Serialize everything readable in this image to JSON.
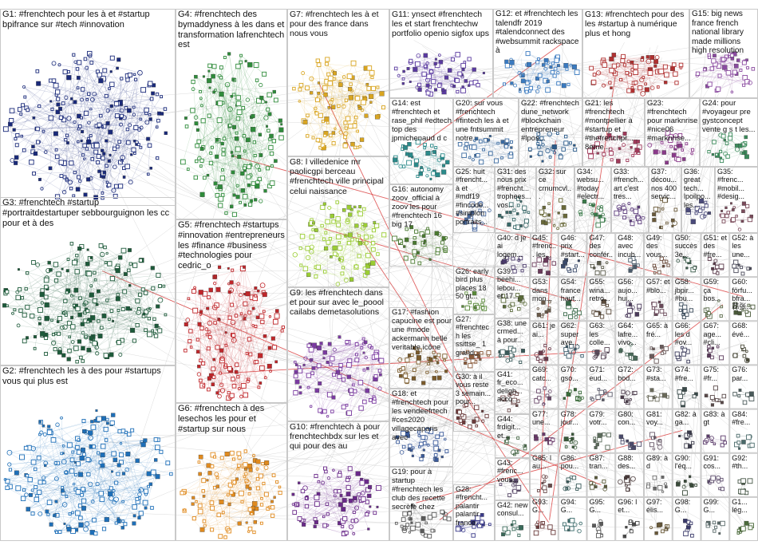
{
  "colors": {
    "edge": "#9a9a9a",
    "edge_red": "#d42020",
    "border": "#c9c9c9",
    "background": "#ffffff"
  },
  "groups": [
    {
      "id": "G1",
      "label": "G1: #frenchtech pour les à et #startup bpifrance sur #tech #innovation",
      "color": "#1a2a7a"
    },
    {
      "id": "G2",
      "label": "G2: #frenchtech les à des pour #startups vous qui plus est",
      "color": "#1e6fb8"
    },
    {
      "id": "G3",
      "label": "G3: #frenchtech #startup #portraitdestartuper sebbourguignon les cc pour et à des",
      "color": "#1d5a3a"
    },
    {
      "id": "G4",
      "label": "G4: #frenchtech des bymaddyness à les dans et transformation lafrenchtech est",
      "color": "#2e8b3a"
    },
    {
      "id": "G5",
      "label": "G5: #frenchtech #startups #innovation #entrepreneurs les #finance #business #technologies pour cedric_o",
      "color": "#c0262a"
    },
    {
      "id": "G6",
      "label": "G6: #frenchtech à des lesechos les pour et #startup sur nous",
      "color": "#e08a1e"
    },
    {
      "id": "G7",
      "label": "G7: #frenchtech les à et pour des france dans nous vous",
      "color": "#d9a520"
    },
    {
      "id": "G8",
      "label": "G8: l villedenice mr paolicgpi berceau #frenchtech ville principal celui naissance",
      "color": "#9acd32"
    },
    {
      "id": "G9",
      "label": "G9: les #frenchtech dans et pour sur avec le_poool cailabs demetasolutions",
      "color": "#7a3aa0"
    },
    {
      "id": "G10",
      "label": "G10: #frenchtech à pour frenchtechbdx sur les et qui pour des au",
      "color": "#6a2a8a"
    },
    {
      "id": "G11",
      "label": "G11: ynsect #frenchtech les et start frenchtechw portfolio openio sigfox ups",
      "color": "#5a3aa0"
    },
    {
      "id": "G12",
      "label": "G12: et #frenchtech les talendfr 2019 #talendconnect des #websummit rackspace à",
      "color": "#3a7ac0"
    },
    {
      "id": "G13",
      "label": "G13: #frenchtech pour des les #startup à numérique plus et hong",
      "color": "#b03030"
    },
    {
      "id": "G14",
      "label": "G14: est #frenchtech et rase_phil #edtech top des jpmichenaud d c",
      "color": "#2a8a8a"
    },
    {
      "id": "G15",
      "label": "G15: big news france french national library made millions high resolution",
      "color": "#8a4aa0"
    },
    {
      "id": "G16",
      "label": "G16: autonomy zoov_official à zoov les pour #frenchtech 16 big 17",
      "color": "#4a7a30"
    },
    {
      "id": "G17",
      "label": "G17: #fashion capucine est pour une #mode ackermann belle veritable icône",
      "color": "#7a5a2a"
    },
    {
      "id": "G18",
      "label": "G18: et #frenchtech pour les vendeefrtech #ces2020 villagecaparis avec",
      "color": "#3a5a9a"
    },
    {
      "id": "G19",
      "label": "G19: pour à startup #frenchtech les club des recette secrète chez",
      "color": "#5a5a5a"
    },
    {
      "id": "G20",
      "label": "G20: sur vous #frenchtech #fintech les à et une fntsummit notre",
      "color": "#3a6aa0"
    },
    {
      "id": "G21",
      "label": "G21: les #frenchtech #montpellier à #startup et #thefrenchpr... 8ème...",
      "color": "#a03a5a"
    },
    {
      "id": "G22",
      "label": "G22: #frenchtech dune_network #blockchain entrepreneur #lpos...",
      "color": "#2a5a8a"
    },
    {
      "id": "G23",
      "label": "G23: #frenchtech pour marknrise #nice06 #marknrise...",
      "color": "#8a3a8a"
    },
    {
      "id": "G24",
      "label": "G24: pour #voyageur pre gystconcept vente g s t les...",
      "color": "#3a8a5a"
    },
    {
      "id": "G25",
      "label": "G25: huit #frencht... à et #mdf19 #fincode... #simplon portraits...",
      "color": "#4a6aa0"
    },
    {
      "id": "G26",
      "label": "G26: early bird plus places 18 50 gt...",
      "color": "#5a8a3a"
    },
    {
      "id": "G27",
      "label": "G27: #frenchtech les ssittse_ 1 grand...",
      "color": "#8a5a3a"
    },
    {
      "id": "G28",
      "label": "G28: #frencht... palantir palantir france...",
      "color": "#3a3a8a"
    },
    {
      "id": "G30",
      "label": "G30: à il vous reste 3 semain... pour...",
      "color": "#6a3a3a"
    },
    {
      "id": "G31",
      "label": "G31: des nous prix #frencht... trophees... vos...",
      "color": "#3a6a6a"
    },
    {
      "id": "G32",
      "label": "G32: sur ce crnumcvl...",
      "color": "#6a6a3a"
    },
    {
      "id": "G33",
      "label": "G33: #french... art c'est tres...",
      "color": "#5a3a7a"
    },
    {
      "id": "G34",
      "label": "G34: websu... #today #electr...",
      "color": "#3a7a4a"
    },
    {
      "id": "G35",
      "label": "G35: #frenc... #mobil... #desig...",
      "color": "#7a4a5a"
    },
    {
      "id": "G36",
      "label": "G36: great tech... lpoilpo... les...",
      "color": "#4a4a7a"
    },
    {
      "id": "G37",
      "label": "G37: décou... nos 400 servic...",
      "color": "#6a5a3a"
    },
    {
      "id": "G38",
      "label": "G38: une crmed... à pour...",
      "color": "#3a5a5a"
    },
    {
      "id": "G39",
      "label": "G39: beehi... lebou... et 17...",
      "color": "#5a6a3a"
    },
    {
      "id": "G40",
      "label": "G40: d je ai logem...",
      "color": "#4a3a6a"
    },
    {
      "id": "G41",
      "label": "G41: fr_eco... deligh... acco...",
      "color": "#6a4a4a"
    },
    {
      "id": "G42",
      "label": "G42: new consul...",
      "color": "#3a6a5a"
    },
    {
      "id": "G43",
      "label": "G43: #frenc... vous...",
      "color": "#5a4a6a"
    },
    {
      "id": "G44",
      "label": "G44: frdigit... et...",
      "color": "#4a6a4a"
    },
    {
      "id": "G45",
      "label": "G45: #frenc... les...",
      "color": "#6a3a5a"
    },
    {
      "id": "G46",
      "label": "G46: prix #start...",
      "color": "#3a4a6a"
    },
    {
      "id": "G47",
      "label": "G47: des confér...",
      "color": "#5a5a4a"
    },
    {
      "id": "G48",
      "label": "G48: avec incub...",
      "color": "#4a5a6a"
    },
    {
      "id": "G49",
      "label": "G49: des vous...",
      "color": "#6a4a3a"
    },
    {
      "id": "G50",
      "label": "G50: succès 3e...",
      "color": "#3a5a4a"
    },
    {
      "id": "G51",
      "label": "G51: et des #fre...",
      "color": "#5a3a4a"
    },
    {
      "id": "G52",
      "label": "G52: à les une...",
      "color": "#4a4a5a"
    },
    {
      "id": "G53",
      "label": "G53: dans mon...",
      "color": "#6a5a4a"
    },
    {
      "id": "G54",
      "label": "G54: france haut...",
      "color": "#3a6a4a"
    },
    {
      "id": "G55",
      "label": "G55: wina... retro...",
      "color": "#5a4a3a"
    },
    {
      "id": "G56",
      "label": "G56: aujo... hui...",
      "color": "#4a3a5a"
    },
    {
      "id": "G57",
      "label": "G57: et #blo...",
      "color": "#6a4a5a"
    },
    {
      "id": "G58",
      "label": "G58: jbpir... #bu...",
      "color": "#3a4a5a"
    },
    {
      "id": "G59",
      "label": "G59: ça bos...",
      "color": "#5a6a4a"
    },
    {
      "id": "G60",
      "label": "G60: förfu... bfra... 蒜张...",
      "color": "#4a5a3a"
    },
    {
      "id": "G61",
      "label": "G61: je ai...",
      "color": "#6a3a4a"
    },
    {
      "id": "G62",
      "label": "G62: super ave...",
      "color": "#3a5a6a"
    },
    {
      "id": "G63",
      "label": "G63: les colle...",
      "color": "#5a4a5a"
    },
    {
      "id": "G64",
      "label": "G64: lafre... vivo...",
      "color": "#4a6a5a"
    },
    {
      "id": "G65",
      "label": "G65: à fré...",
      "color": "#6a5a5a"
    },
    {
      "id": "G66",
      "label": "G66: les d #ov...",
      "color": "#3a3a5a"
    },
    {
      "id": "G67",
      "label": "G67: age... #cli...",
      "color": "#5a3a5a"
    },
    {
      "id": "G68",
      "label": "G68: évé...",
      "color": "#4a4a3a"
    },
    {
      "id": "G69",
      "label": "G69: catc...",
      "color": "#6a4a6a"
    },
    {
      "id": "G70",
      "label": "G70: gso...",
      "color": "#3a6a3a"
    },
    {
      "id": "G71",
      "label": "G71: eud...",
      "color": "#5a5a6a"
    },
    {
      "id": "G72",
      "label": "G72: bod...",
      "color": "#4a3a4a"
    },
    {
      "id": "G73",
      "label": "G73: #sta...",
      "color": "#6a6a5a"
    },
    {
      "id": "G74",
      "label": "G74: #fre...",
      "color": "#3a4a4a"
    },
    {
      "id": "G75",
      "label": "G75: #fr...",
      "color": "#5a4a4a"
    },
    {
      "id": "G76",
      "label": "G76: par...",
      "color": "#4a5a5a"
    },
    {
      "id": "G77",
      "label": "G77: une...",
      "color": "#6a3a6a"
    },
    {
      "id": "G78",
      "label": "G78: jour...",
      "color": "#3a5a3a"
    },
    {
      "id": "G79",
      "label": "G79: votr...",
      "color": "#5a6a5a"
    },
    {
      "id": "G80",
      "label": "G80: con...",
      "color": "#4a4a6a"
    },
    {
      "id": "G81",
      "label": "G81: voy...",
      "color": "#6a5a6a"
    },
    {
      "id": "G82",
      "label": "G82: à ga...",
      "color": "#3a3a4a"
    },
    {
      "id": "G83",
      "label": "G83: à gt",
      "color": "#5a3a6a"
    },
    {
      "id": "G84",
      "label": "G84: #fre...",
      "color": "#4a6a6a"
    },
    {
      "id": "G85",
      "label": "G85: l au...",
      "color": "#6a4a4a"
    },
    {
      "id": "G86",
      "label": "G86: pou...",
      "color": "#3a5a5a"
    },
    {
      "id": "G87",
      "label": "G87: tran...",
      "color": "#5a5a3a"
    },
    {
      "id": "G88",
      "label": "G88: des...",
      "color": "#4a3a3a"
    },
    {
      "id": "G89",
      "label": "G89: à d",
      "color": "#6a6a6a"
    },
    {
      "id": "G90",
      "label": "G90: l'éq...",
      "color": "#3a4a3a"
    },
    {
      "id": "G91",
      "label": "G91: cos...",
      "color": "#5a4a6a"
    },
    {
      "id": "G92",
      "label": "G92: #th...",
      "color": "#4a5a4a"
    },
    {
      "id": "G93",
      "label": "G93: G...",
      "color": "#6a3a3a"
    },
    {
      "id": "G94",
      "label": "G94: G...",
      "color": "#3a6a6a"
    },
    {
      "id": "G95",
      "label": "G95: G...",
      "color": "#5a5a5a"
    },
    {
      "id": "G96",
      "label": "G96: l et...",
      "color": "#4a4a4a"
    },
    {
      "id": "G97",
      "label": "G97: élis...",
      "color": "#6a5a3a"
    },
    {
      "id": "G98",
      "label": "G98: G...",
      "color": "#3a3a6a"
    },
    {
      "id": "G99",
      "label": "G99: G...",
      "color": "#5a6a6a"
    },
    {
      "id": "G100",
      "label": "G1... lég...",
      "color": "#4a6a3a"
    }
  ]
}
